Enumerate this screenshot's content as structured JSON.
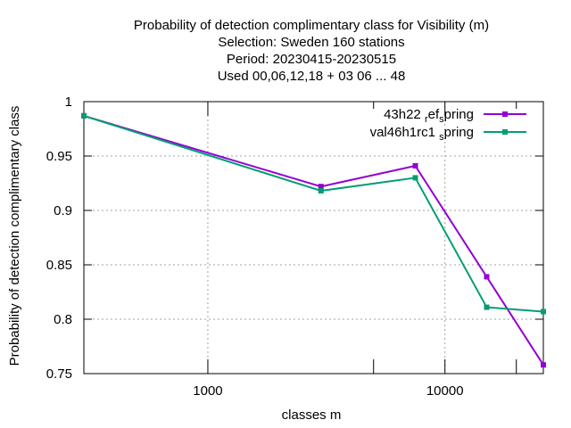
{
  "chart_data": {
    "type": "line",
    "title_lines": [
      "Probability of detection complimentary class  for Visibility (m)",
      "Selection: Sweden    160 stations",
      "Period: 20230415-20230515",
      "Used  00,06,12,18  + 03 06 ... 48"
    ],
    "xlabel": "classes m",
    "ylabel": "Probability of detection complimentary class",
    "xscale": "log",
    "xlim": [
      300,
      26000
    ],
    "ylim": [
      0.75,
      1.0
    ],
    "x_ticks": [
      1000,
      10000
    ],
    "x_tick_labels": [
      "1000",
      "10000"
    ],
    "x_minor_ticks": [
      5000,
      20000
    ],
    "y_ticks": [
      0.75,
      0.8,
      0.85,
      0.9,
      0.95,
      1.0
    ],
    "y_tick_labels": [
      "0.75",
      "0.8",
      "0.85",
      "0.9",
      "0.95",
      "1"
    ],
    "grid": true,
    "legend_position": "top-right",
    "series": [
      {
        "name": "43h22 ref spring",
        "legend_parts": [
          [
            "43h22 ",
            "n"
          ],
          [
            "r",
            "sub"
          ],
          [
            "ef",
            "n"
          ],
          [
            "s",
            "sub"
          ],
          [
            "pring",
            "n"
          ]
        ],
        "color": "#9400d3",
        "x": [
          300,
          3000,
          7500,
          15000,
          26000
        ],
        "y": [
          0.987,
          0.922,
          0.941,
          0.839,
          0.758
        ]
      },
      {
        "name": "val46h1rc1 spring",
        "legend_parts": [
          [
            "val46h1rc1 ",
            "n"
          ],
          [
            "s",
            "sub"
          ],
          [
            "pring",
            "n"
          ]
        ],
        "color": "#009e73",
        "x": [
          300,
          3000,
          7500,
          15000,
          26000
        ],
        "y": [
          0.987,
          0.918,
          0.93,
          0.811,
          0.807
        ]
      }
    ]
  }
}
